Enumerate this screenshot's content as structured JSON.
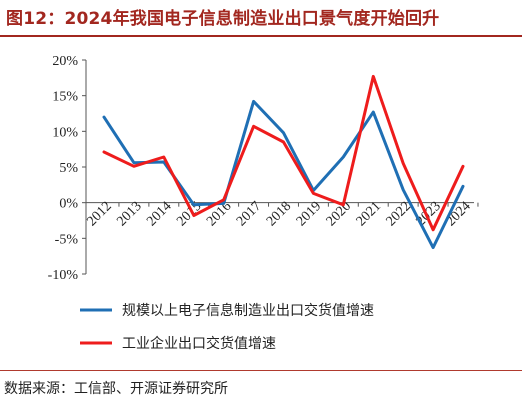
{
  "header": {
    "title": "图12：2024年我国电子信息制造业出口景气度开始回升"
  },
  "footer": {
    "source": "数据来源：工信部、开源证券研究所"
  },
  "chart_data": {
    "type": "line",
    "categories": [
      "2012",
      "2013",
      "2014",
      "2015",
      "2016",
      "2017",
      "2018",
      "2019",
      "2020",
      "2021",
      "2022",
      "2023",
      "2024"
    ],
    "y_ticks": [
      "20%",
      "15%",
      "10%",
      "5%",
      "0%",
      "-5%",
      "-10%"
    ],
    "ylim": [
      -10,
      20
    ],
    "grid": false,
    "legend_position": "bottom",
    "series": [
      {
        "name": "规模以上电子信息制造业出口交货值增速",
        "color": "#1f6fb4",
        "values": [
          12.0,
          5.6,
          5.7,
          -0.3,
          -0.1,
          14.2,
          9.8,
          1.7,
          6.4,
          12.7,
          1.8,
          -6.3,
          2.3
        ]
      },
      {
        "name": "工业企业出口交货值增速",
        "color": "#ee1c1c",
        "values": [
          7.1,
          5.1,
          6.4,
          -1.8,
          0.4,
          10.7,
          8.5,
          1.3,
          -0.3,
          17.7,
          5.5,
          -3.8,
          5.1
        ]
      }
    ]
  }
}
